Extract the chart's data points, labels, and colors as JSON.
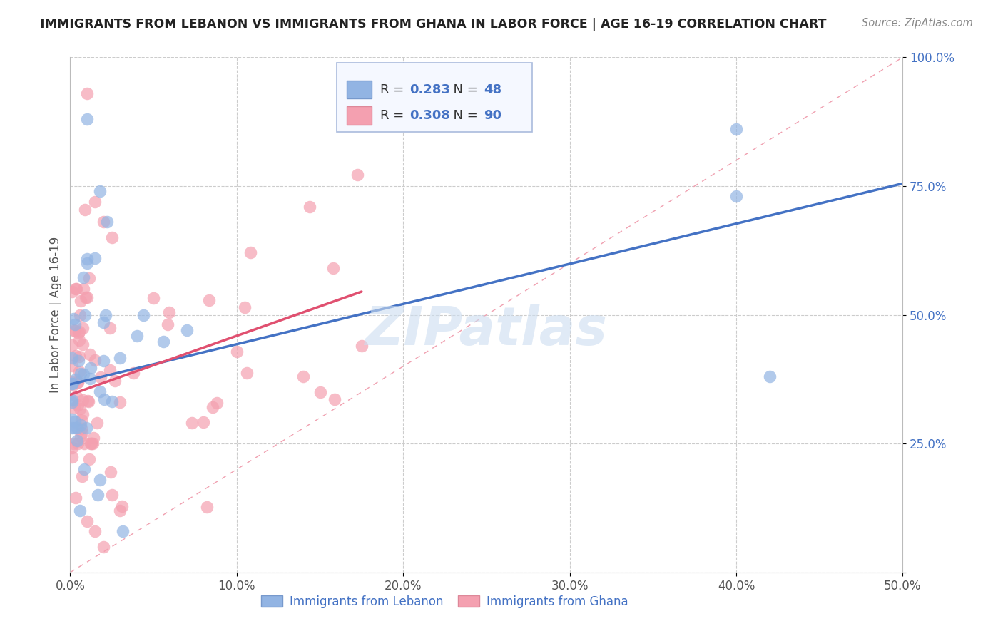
{
  "title": "IMMIGRANTS FROM LEBANON VS IMMIGRANTS FROM GHANA IN LABOR FORCE | AGE 16-19 CORRELATION CHART",
  "source": "Source: ZipAtlas.com",
  "ylabel": "In Labor Force | Age 16-19",
  "xlim": [
    0.0,
    0.5
  ],
  "ylim": [
    0.0,
    1.0
  ],
  "xticks": [
    0.0,
    0.1,
    0.2,
    0.3,
    0.4,
    0.5
  ],
  "xtick_labels": [
    "0.0%",
    "10.0%",
    "20.0%",
    "30.0%",
    "40.0%",
    "50.0%"
  ],
  "yticks": [
    0.0,
    0.25,
    0.5,
    0.75,
    1.0
  ],
  "ytick_labels": [
    "",
    "25.0%",
    "50.0%",
    "75.0%",
    "100.0%"
  ],
  "lebanon_color": "#92b4e3",
  "ghana_color": "#f4a0b0",
  "lebanon_R": 0.283,
  "lebanon_N": 48,
  "ghana_R": 0.308,
  "ghana_N": 90,
  "lebanon_label": "Immigrants from Lebanon",
  "ghana_label": "Immigrants from Ghana",
  "watermark_text": "ZIPatlas",
  "title_color": "#222222",
  "axis_color": "#555555",
  "grid_color": "#cccccc",
  "ref_line_color": "#f0a0b0",
  "blue_line_color": "#4472c4",
  "pink_line_color": "#e05070",
  "tick_color": "#4472c4",
  "legend_bg": "#f5f8ff",
  "legend_border": "#aabbdd",
  "leb_line_x0": 0.0,
  "leb_line_y0": 0.365,
  "leb_line_x1": 0.5,
  "leb_line_y1": 0.755,
  "gha_line_x0": 0.0,
  "gha_line_y0": 0.345,
  "gha_line_x1": 0.175,
  "gha_line_y1": 0.545
}
